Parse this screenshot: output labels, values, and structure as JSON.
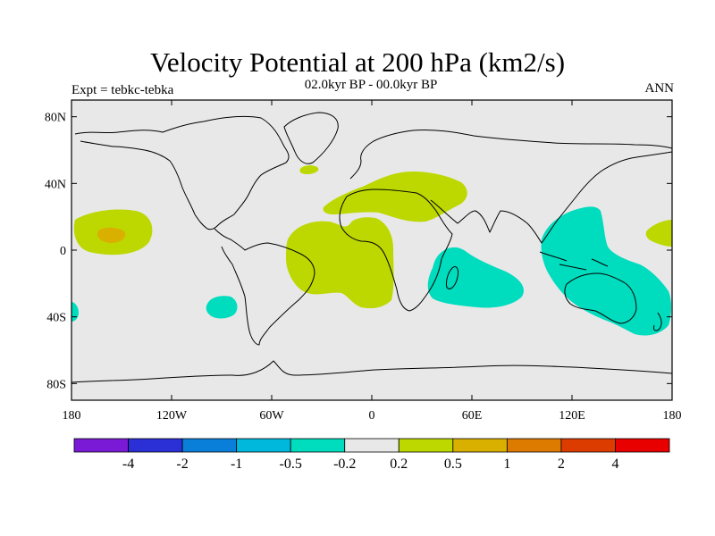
{
  "header": {
    "title": "Velocity Potential at 200 hPa (km2/s)",
    "subtitle": "02.0kyr BP - 00.0kyr BP",
    "experiment": "Expt = tebkc-tebka",
    "season": "ANN"
  },
  "map": {
    "projection": "cylindrical-equidistant",
    "background_color": "#e8e8e8",
    "lat_ticks": [
      "80N",
      "40N",
      "0",
      "40S",
      "80S"
    ],
    "lon_ticks": [
      "180",
      "120W",
      "60W",
      "0",
      "60E",
      "120E",
      "180"
    ]
  },
  "colorbar": {
    "labels": [
      "-4",
      "-2",
      "-1",
      "-0.5",
      "-0.2",
      "0.2",
      "0.5",
      "1",
      "2",
      "4"
    ],
    "colors": [
      "#7a1ad6",
      "#2b2fd6",
      "#0a7fd9",
      "#00b7dc",
      "#00dcbe",
      "#e8e8e8",
      "#bcd800",
      "#d9b000",
      "#dd7a00",
      "#dd3c00",
      "#e80000"
    ]
  },
  "chart_data": {
    "type": "map",
    "variable": "Velocity Potential at 200 hPa (km2/s)",
    "regions": [
      {
        "name": "central North Pacific",
        "center_lon": -158,
        "center_lat": 12,
        "category": "0.2 to 0.5",
        "color": "#bcd800"
      },
      {
        "name": "central Pacific core",
        "center_lon": -162,
        "center_lat": 10,
        "category": "0.5 to 1",
        "color": "#d9b000"
      },
      {
        "name": "tropical Atlantic / South America / West Africa",
        "center_lon": -15,
        "center_lat": -12,
        "category": "0.2 to 0.5",
        "color": "#bcd800"
      },
      {
        "name": "North Africa / Middle East",
        "center_lon": 30,
        "center_lat": 30,
        "category": "0.2 to 0.5",
        "color": "#bcd800"
      },
      {
        "name": "North Atlantic",
        "center_lon": -40,
        "center_lat": 48,
        "category": "0.2 to 0.5",
        "color": "#bcd800"
      },
      {
        "name": "western Pacific east of dateline",
        "center_lon": 175,
        "center_lat": 10,
        "category": "0.2 to 0.5",
        "color": "#bcd800"
      },
      {
        "name": "southern Indian Ocean",
        "center_lon": 58,
        "center_lat": -20,
        "category": "-0.5 to -0.2",
        "color": "#00dcbe"
      },
      {
        "name": "Maritime Continent / Australia",
        "center_lon": 135,
        "center_lat": -10,
        "category": "-0.5 to -0.2",
        "color": "#00dcbe"
      },
      {
        "name": "South Pacific",
        "center_lon": -92,
        "center_lat": -34,
        "category": "-0.5 to -0.2",
        "color": "#00dcbe"
      },
      {
        "name": "far southwest Pacific edge",
        "center_lon": -180,
        "center_lat": -36,
        "category": "-0.5 to -0.2",
        "color": "#00dcbe"
      }
    ]
  }
}
